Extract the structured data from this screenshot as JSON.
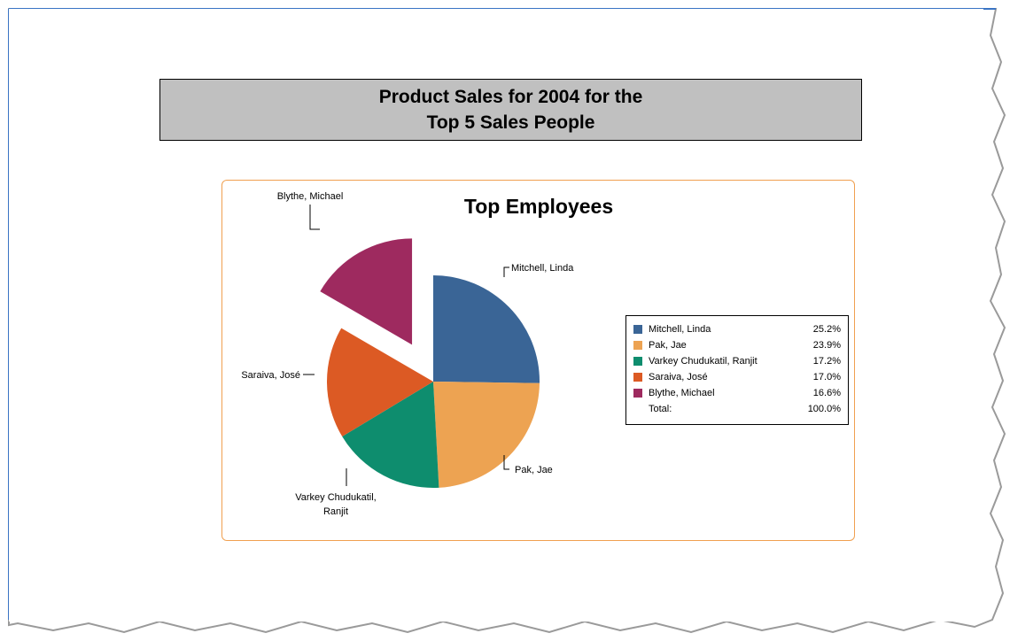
{
  "report": {
    "title_line1": "Product Sales for 2004 for the",
    "title_line2": "Top 5 Sales People"
  },
  "colors": {
    "mitchell": "#3a6596",
    "pak": "#eda352",
    "varkey": "#0e8d6e",
    "saraiva": "#dc5a24",
    "blythe": "#9e2a5f",
    "chart_border": "#f0a050",
    "title_bg": "#c0c0c0"
  },
  "chart_data": {
    "type": "pie",
    "title": "Top Employees",
    "slices": [
      {
        "name": "Mitchell, Linda",
        "value": 25.2,
        "color": "#3a6596",
        "exploded": false
      },
      {
        "name": "Pak, Jae",
        "value": 23.9,
        "color": "#eda352",
        "exploded": false
      },
      {
        "name": "Varkey Chudukatil, Ranjit",
        "value": 17.2,
        "color": "#0e8d6e",
        "exploded": false
      },
      {
        "name": "Saraiva, José",
        "value": 17.0,
        "color": "#dc5a24",
        "exploded": false
      },
      {
        "name": "Blythe, Michael",
        "value": 16.6,
        "color": "#9e2a5f",
        "exploded": true
      }
    ],
    "callout_labels": {
      "mitchell": "Mitchell, Linda",
      "pak": "Pak, Jae",
      "varkey_line1": "Varkey Chudukatil,",
      "varkey_line2": "Ranjit",
      "saraiva": "Saraiva, José",
      "blythe": "Blythe, Michael"
    },
    "legend": {
      "position": "right",
      "rows": [
        {
          "name": "Mitchell, Linda",
          "pct": "25.2%",
          "color": "#3a6596"
        },
        {
          "name": "Pak, Jae",
          "pct": "23.9%",
          "color": "#eda352"
        },
        {
          "name": "Varkey Chudukatil, Ranjit",
          "pct": "17.2%",
          "color": "#0e8d6e"
        },
        {
          "name": "Saraiva, José",
          "pct": "17.0%",
          "color": "#dc5a24"
        },
        {
          "name": "Blythe, Michael",
          "pct": "16.6%",
          "color": "#9e2a5f"
        }
      ],
      "total_label": "Total:",
      "total_pct": "100.0%"
    }
  }
}
